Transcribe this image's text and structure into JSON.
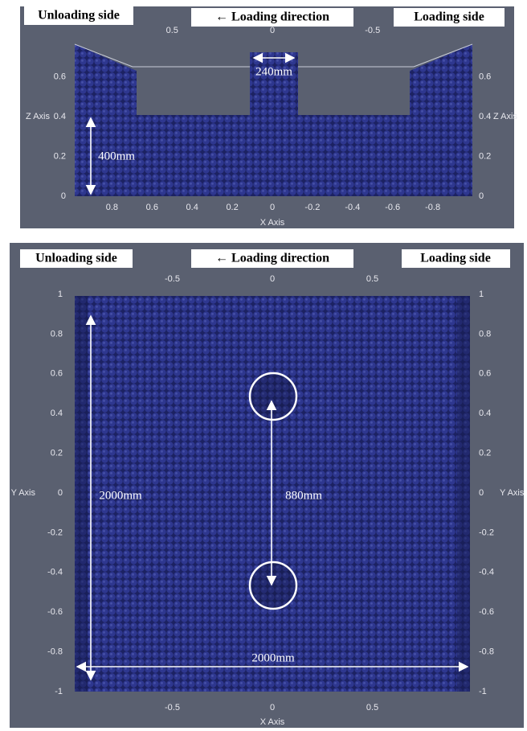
{
  "top_panel": {
    "labels": {
      "left": "Unloading side",
      "center": "← Loading direction",
      "right": "Loading side"
    },
    "x_axis_title": "X Axis",
    "z_axis_title": "Z Axis",
    "top_xticks": [
      0.5,
      0,
      -0.5
    ],
    "bottom_xticks": [
      0.8,
      0.6,
      0.4,
      0.2,
      0,
      -0.2,
      -0.4,
      -0.6,
      -0.8
    ],
    "zticks": [
      0,
      0.2,
      0.4,
      0.6
    ],
    "dimensions": {
      "diameter": "240mm",
      "height": "400mm"
    }
  },
  "bottom_panel": {
    "labels": {
      "left": "Unloading side",
      "center": "← Loading direction",
      "right": "Loading side"
    },
    "x_axis_title": "X Axis",
    "y_axis_title": "Y Axis",
    "xticks": [
      -0.5,
      0,
      0.5
    ],
    "yticks": [
      1,
      0.8,
      0.6,
      0.4,
      0.2,
      0,
      -0.2,
      -0.4,
      -0.6,
      -0.8,
      -1
    ],
    "dimensions": {
      "width": "2000mm",
      "spacing": "880mm",
      "length": "2000mm"
    }
  }
}
